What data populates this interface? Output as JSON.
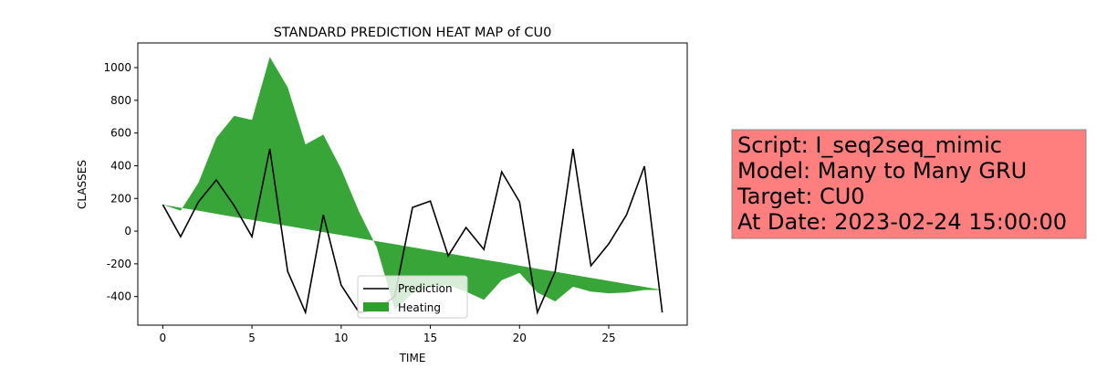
{
  "chart_data": {
    "type": "line_fill",
    "title": "STANDARD PREDICTION HEAT MAP of CU0",
    "xlabel": "TIME",
    "ylabel": "CLASSES",
    "x": [
      0,
      1,
      2,
      3,
      4,
      5,
      6,
      7,
      8,
      9,
      10,
      11,
      12,
      13,
      14,
      15,
      16,
      17,
      18,
      19,
      20,
      21,
      22,
      23,
      24,
      25,
      26,
      27,
      28
    ],
    "series": [
      {
        "name": "Prediction",
        "color": "#000000",
        "values": [
          162,
          -34,
          179,
          313,
          156,
          -34,
          503,
          -246,
          -497,
          100,
          -330,
          -497,
          -480,
          -400,
          145,
          184,
          -151,
          22,
          -112,
          363,
          179,
          -497,
          -246,
          503,
          -212,
          -78,
          100,
          397,
          -497
        ]
      },
      {
        "name": "Heating",
        "color": "#2ca02c",
        "values": [
          162,
          125,
          296,
          570,
          705,
          680,
          1065,
          880,
          530,
          590,
          380,
          120,
          -100,
          -480,
          -380,
          -340,
          -330,
          -370,
          -420,
          -300,
          -255,
          -375,
          -430,
          -340,
          -370,
          -380,
          -375,
          -360,
          -360
        ],
        "baseline": [
          162,
          143,
          125,
          106,
          87,
          69,
          50,
          32,
          13,
          -6,
          -24,
          -43,
          -62,
          -80,
          -99,
          -118,
          -136,
          -155,
          -174,
          -192,
          -211,
          -230,
          -248,
          -267,
          -286,
          -304,
          -323,
          -341,
          -360
        ]
      }
    ],
    "xlim": [
      -1.4,
      29.4
    ],
    "ylim": [
      -575,
      1151
    ],
    "xticks": [
      0,
      5,
      10,
      15,
      20,
      25
    ],
    "yticks": [
      -400,
      -200,
      0,
      200,
      400,
      600,
      800,
      1000
    ],
    "legend": "lower center",
    "annotation": [
      "Script: I_seq2seq_mimic",
      "Model: Many to Many GRU",
      "Target: CU0",
      "At Date: 2023-02-24 15:00:00"
    ],
    "annotation_color": "#ff7f7f"
  }
}
